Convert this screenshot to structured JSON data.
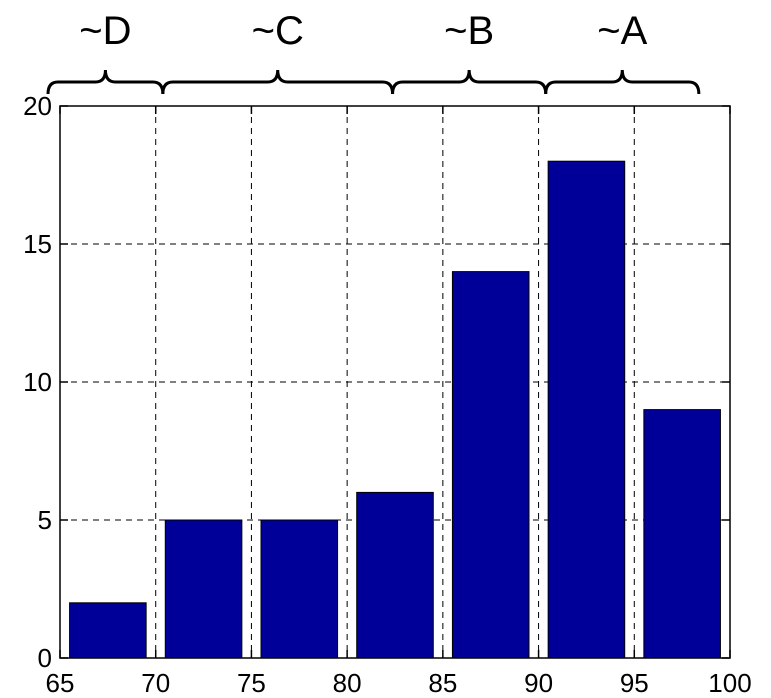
{
  "chart_data": {
    "type": "bar",
    "title": "",
    "xlabel": "",
    "ylabel": "",
    "bins": [
      {
        "x0": 65,
        "x1": 70,
        "value": 2
      },
      {
        "x0": 70,
        "x1": 75,
        "value": 5
      },
      {
        "x0": 75,
        "x1": 80,
        "value": 5
      },
      {
        "x0": 80,
        "x1": 85,
        "value": 6
      },
      {
        "x0": 85,
        "x1": 90,
        "value": 14
      },
      {
        "x0": 90,
        "x1": 95,
        "value": 18
      },
      {
        "x0": 95,
        "x1": 100,
        "value": 9
      }
    ],
    "xlim": [
      65,
      100
    ],
    "ylim": [
      0,
      20
    ],
    "xticks": [
      65,
      70,
      75,
      80,
      85,
      90,
      95,
      100
    ],
    "yticks": [
      0,
      5,
      10,
      15,
      20
    ],
    "xtick_labels": [
      "65",
      "70",
      "75",
      "80",
      "85",
      "90",
      "95",
      "100"
    ],
    "ytick_labels": [
      "0",
      "5",
      "10",
      "15",
      "20"
    ],
    "grid": true,
    "grid_style": "dashed",
    "bar_color": "#000099",
    "annotations": [
      {
        "label": "~D",
        "from": 65,
        "to": 71
      },
      {
        "label": "~C",
        "from": 71,
        "to": 83
      },
      {
        "label": "~B",
        "from": 83,
        "to": 91
      },
      {
        "label": "~A",
        "from": 91,
        "to": 99
      }
    ]
  }
}
